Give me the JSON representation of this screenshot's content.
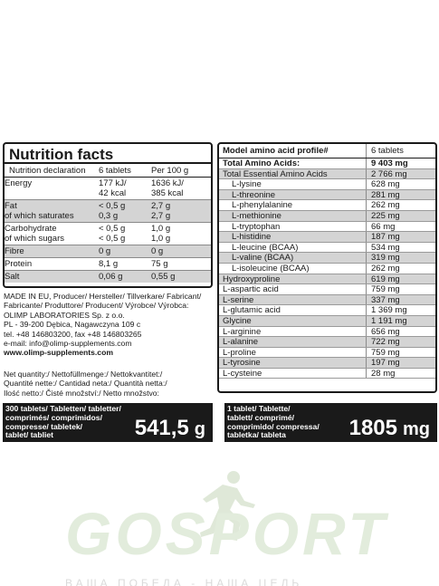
{
  "nutrition": {
    "title": "Nutrition facts",
    "header": {
      "col1": "Nutrition declaration",
      "col2": "6 tablets",
      "col3": "Per 100 g"
    },
    "rows": [
      {
        "l1": "Energy",
        "l2": "",
        "a1": "177 kJ/",
        "a2": "42 kcal",
        "b1": "1636 kJ/",
        "b2": "385 kcal",
        "shaded": false
      },
      {
        "l1": "Fat",
        "l2": "of which saturates",
        "a1": "< 0,5 g",
        "a2": "0,3 g",
        "b1": "2,7 g",
        "b2": "2,7 g",
        "shaded": true
      },
      {
        "l1": "Carbohydrate",
        "l2": "of which sugars",
        "a1": "< 0,5 g",
        "a2": "< 0,5 g",
        "b1": "1,0 g",
        "b2": "1,0 g",
        "shaded": false
      },
      {
        "l1": "Fibre",
        "l2": "",
        "a1": "0 g",
        "a2": "",
        "b1": "0 g",
        "b2": "",
        "shaded": true
      },
      {
        "l1": "Protein",
        "l2": "",
        "a1": "8,1 g",
        "a2": "",
        "b1": "75 g",
        "b2": "",
        "shaded": false
      },
      {
        "l1": "Salt",
        "l2": "",
        "a1": "0,06 g",
        "a2": "",
        "b1": "0,55 g",
        "b2": "",
        "shaded": true
      }
    ]
  },
  "amino": {
    "header": {
      "col1": "Model amino acid profile#",
      "col2": "6 tablets"
    },
    "rows": [
      {
        "name": "Total Amino Acids:",
        "value": "9 403 mg",
        "bold": true,
        "indent": false,
        "shaded": false
      },
      {
        "name": "Total Essential Amino Acids",
        "value": "2 766 mg",
        "bold": false,
        "indent": false,
        "shaded": true
      },
      {
        "name": "L-lysine",
        "value": "628 mg",
        "bold": false,
        "indent": true,
        "shaded": false
      },
      {
        "name": "L-threonine",
        "value": "281 mg",
        "bold": false,
        "indent": true,
        "shaded": true
      },
      {
        "name": "L-phenylalanine",
        "value": "262 mg",
        "bold": false,
        "indent": true,
        "shaded": false
      },
      {
        "name": "L-methionine",
        "value": "225 mg",
        "bold": false,
        "indent": true,
        "shaded": true
      },
      {
        "name": "L-tryptophan",
        "value": "66 mg",
        "bold": false,
        "indent": true,
        "shaded": false
      },
      {
        "name": "L-histidine",
        "value": "187 mg",
        "bold": false,
        "indent": true,
        "shaded": true
      },
      {
        "name": "L-leucine (BCAA)",
        "value": "534 mg",
        "bold": false,
        "indent": true,
        "shaded": false
      },
      {
        "name": "L-valine (BCAA)",
        "value": "319 mg",
        "bold": false,
        "indent": true,
        "shaded": true
      },
      {
        "name": "L-isoleucine (BCAA)",
        "value": "262 mg",
        "bold": false,
        "indent": true,
        "shaded": false
      },
      {
        "name": "Hydroxyproline",
        "value": "619 mg",
        "bold": false,
        "indent": false,
        "shaded": true
      },
      {
        "name": "L-aspartic acid",
        "value": "759 mg",
        "bold": false,
        "indent": false,
        "shaded": false
      },
      {
        "name": "L-serine",
        "value": "337 mg",
        "bold": false,
        "indent": false,
        "shaded": true
      },
      {
        "name": "L-glutamic acid",
        "value": "1 369 mg",
        "bold": false,
        "indent": false,
        "shaded": false
      },
      {
        "name": "Glycine",
        "value": "1 191 mg",
        "bold": false,
        "indent": false,
        "shaded": true
      },
      {
        "name": "L-arginine",
        "value": "656 mg",
        "bold": false,
        "indent": false,
        "shaded": false
      },
      {
        "name": "L-alanine",
        "value": "722 mg",
        "bold": false,
        "indent": false,
        "shaded": true
      },
      {
        "name": "L-proline",
        "value": "759 mg",
        "bold": false,
        "indent": false,
        "shaded": false
      },
      {
        "name": "L-tyrosine",
        "value": "197 mg",
        "bold": false,
        "indent": false,
        "shaded": true
      },
      {
        "name": "L-cysteine",
        "value": "28 mg",
        "bold": false,
        "indent": false,
        "shaded": false
      }
    ]
  },
  "manufacturer": {
    "lines": [
      "MADE IN EU, Producer/ Hersteller/ Tillverkare/ Fabricant/",
      "Fabricante/ Produttore/ Producent/ Výrobce/ Výrobca:",
      "OLIMP LABORATORIES Sp. z o.o.",
      "PL - 39-200 Dębica, Nagawczyna 109 c",
      "tel. +48 146803200, fax +48 146803265",
      "e-mail: info@olimp-supplements.com"
    ],
    "website": "www.olimp-supplements.com"
  },
  "net_quantity": {
    "lines": [
      "Net quantity:/ Nettofüllmenge:/ Nettokvantitet:/",
      "Quantité nette:/ Cantidad neta:/ Quantità netta:/",
      "Ilość netto:/ Čisté množství:/ Netto množstvo:"
    ]
  },
  "box_300": {
    "lines": [
      "300 tablets/ Tabletten/ tabletter/",
      "comprimés/ comprimidos/",
      "compresse/ tabletek/",
      "tablet/ tabliet"
    ],
    "amount": "541,5",
    "unit": "g"
  },
  "box_1": {
    "lines": [
      "1 tablet/ Tablette/",
      "tablett/ comprimé/",
      "comprimido/ compressa/",
      "tabletka/ tableta"
    ],
    "amount": "1805",
    "unit": "mg"
  },
  "watermark": {
    "word": "GOSPORT",
    "slogan": "ВАША ПОБЕДА - НАША ЦЕЛЬ",
    "color": "#5aa02c"
  }
}
